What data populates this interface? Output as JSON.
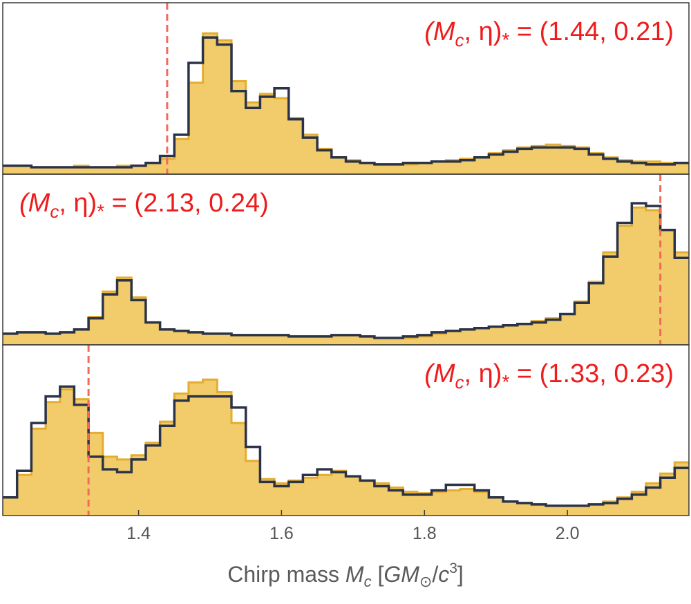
{
  "chart_data": {
    "type": "histogram",
    "bin_edges": [
      1.21,
      1.23,
      1.25,
      1.27,
      1.29,
      1.31,
      1.33,
      1.35,
      1.37,
      1.39,
      1.41,
      1.43,
      1.45,
      1.47,
      1.49,
      1.51,
      1.53,
      1.55,
      1.57,
      1.59,
      1.61,
      1.63,
      1.65,
      1.67,
      1.69,
      1.71,
      1.73,
      1.75,
      1.77,
      1.79,
      1.81,
      1.83,
      1.85,
      1.87,
      1.89,
      1.91,
      1.93,
      1.95,
      1.97,
      1.99,
      2.01,
      2.03,
      2.05,
      2.07,
      2.09,
      2.11,
      2.13,
      2.15,
      2.17
    ],
    "xlim": [
      1.21,
      2.17
    ],
    "xticks": [
      1.4,
      1.6,
      1.8,
      2.0
    ],
    "xtick_labels": [
      "1.4",
      "1.6",
      "1.8",
      "2.0"
    ],
    "xlabel": {
      "prefix": "Chirp mass ",
      "var_main": "M",
      "var_sub": "c",
      "bracket_open": " [",
      "unit_main": "GM",
      "unit_sub": "⊙",
      "slash": "/",
      "unit_c": "c",
      "unit_exp": "3",
      "bracket_close": "]"
    },
    "colors": {
      "fill": "#f2cb6a",
      "fill_edge": "#e3ad30",
      "line": "#2b3348",
      "marker": "#f26a5a",
      "annotation": "#ee1c1c"
    },
    "panels": [
      {
        "annotation": {
          "lhs": "(M",
          "sub_c": "c",
          "eta": ", η)",
          "star": "*",
          "rhs": " = (1.44, 0.21)",
          "position": "top-right"
        },
        "marker_x": 1.44,
        "ylim": [
          0,
          1.0
        ],
        "series": [
          {
            "name": "",
            "style": "filled",
            "values": [
              0.02,
              0.02,
              0.01,
              0.01,
              0.01,
              0.02,
              0.01,
              0.01,
              0.02,
              0.02,
              0.04,
              0.07,
              0.21,
              0.61,
              0.96,
              0.91,
              0.62,
              0.47,
              0.53,
              0.5,
              0.36,
              0.24,
              0.14,
              0.08,
              0.06,
              0.04,
              0.03,
              0.03,
              0.03,
              0.04,
              0.05,
              0.06,
              0.07,
              0.08,
              0.11,
              0.13,
              0.15,
              0.16,
              0.17,
              0.16,
              0.15,
              0.11,
              0.08,
              0.06,
              0.05,
              0.05,
              0.04,
              0.04
            ]
          },
          {
            "name": "",
            "style": "step",
            "values": [
              0.02,
              0.02,
              0.01,
              0.01,
              0.01,
              0.01,
              0.01,
              0.01,
              0.01,
              0.02,
              0.04,
              0.09,
              0.24,
              0.75,
              0.93,
              0.88,
              0.55,
              0.43,
              0.51,
              0.57,
              0.35,
              0.22,
              0.13,
              0.08,
              0.05,
              0.04,
              0.03,
              0.03,
              0.04,
              0.04,
              0.05,
              0.05,
              0.06,
              0.08,
              0.1,
              0.12,
              0.14,
              0.15,
              0.15,
              0.15,
              0.14,
              0.1,
              0.07,
              0.05,
              0.04,
              0.03,
              0.03,
              0.04
            ]
          }
        ]
      },
      {
        "annotation": {
          "lhs": "(M",
          "sub_c": "c",
          "eta": ", η)",
          "star": "*",
          "rhs": " = (2.13, 0.24)",
          "position": "top-left"
        },
        "marker_x": 2.13,
        "ylim": [
          0,
          1.0
        ],
        "series": [
          {
            "name": "",
            "style": "filled",
            "values": [
              0.04,
              0.05,
              0.05,
              0.04,
              0.05,
              0.07,
              0.16,
              0.34,
              0.44,
              0.3,
              0.12,
              0.07,
              0.06,
              0.05,
              0.04,
              0.04,
              0.03,
              0.03,
              0.03,
              0.03,
              0.02,
              0.02,
              0.02,
              0.03,
              0.03,
              0.02,
              0.01,
              0.01,
              0.01,
              0.02,
              0.04,
              0.06,
              0.07,
              0.08,
              0.09,
              0.1,
              0.11,
              0.13,
              0.15,
              0.18,
              0.27,
              0.41,
              0.62,
              0.81,
              0.94,
              0.92,
              0.78,
              0.62
            ]
          },
          {
            "name": "",
            "style": "step",
            "values": [
              0.04,
              0.05,
              0.05,
              0.04,
              0.05,
              0.07,
              0.15,
              0.32,
              0.42,
              0.28,
              0.12,
              0.07,
              0.06,
              0.05,
              0.04,
              0.04,
              0.03,
              0.03,
              0.03,
              0.03,
              0.02,
              0.02,
              0.02,
              0.03,
              0.03,
              0.02,
              0.01,
              0.01,
              0.02,
              0.03,
              0.05,
              0.06,
              0.07,
              0.08,
              0.09,
              0.1,
              0.11,
              0.12,
              0.14,
              0.18,
              0.26,
              0.4,
              0.59,
              0.83,
              0.97,
              0.95,
              0.78,
              0.58
            ]
          }
        ]
      },
      {
        "annotation": {
          "lhs": "(M",
          "sub_c": "c",
          "eta": ", η)",
          "star": "*",
          "rhs": " = (1.33, 0.23)",
          "position": "top-right"
        },
        "marker_x": 1.33,
        "ylim": [
          0,
          1.0
        ],
        "series": [
          {
            "name": "",
            "style": "filled",
            "values": [
              0.09,
              0.25,
              0.58,
              0.77,
              0.86,
              0.79,
              0.55,
              0.38,
              0.36,
              0.39,
              0.48,
              0.63,
              0.83,
              0.91,
              0.93,
              0.84,
              0.62,
              0.35,
              0.22,
              0.19,
              0.21,
              0.23,
              0.25,
              0.28,
              0.24,
              0.21,
              0.19,
              0.16,
              0.13,
              0.12,
              0.13,
              0.14,
              0.15,
              0.13,
              0.09,
              0.06,
              0.05,
              0.04,
              0.03,
              0.03,
              0.03,
              0.04,
              0.06,
              0.09,
              0.13,
              0.19,
              0.26,
              0.34
            ]
          },
          {
            "name": "",
            "style": "step",
            "values": [
              0.09,
              0.28,
              0.62,
              0.81,
              0.88,
              0.75,
              0.38,
              0.29,
              0.27,
              0.36,
              0.46,
              0.6,
              0.78,
              0.81,
              0.81,
              0.81,
              0.73,
              0.45,
              0.2,
              0.17,
              0.2,
              0.25,
              0.29,
              0.27,
              0.24,
              0.21,
              0.17,
              0.14,
              0.11,
              0.11,
              0.14,
              0.18,
              0.18,
              0.14,
              0.09,
              0.06,
              0.05,
              0.04,
              0.03,
              0.03,
              0.03,
              0.04,
              0.05,
              0.08,
              0.11,
              0.16,
              0.23,
              0.3
            ]
          }
        ]
      }
    ]
  }
}
